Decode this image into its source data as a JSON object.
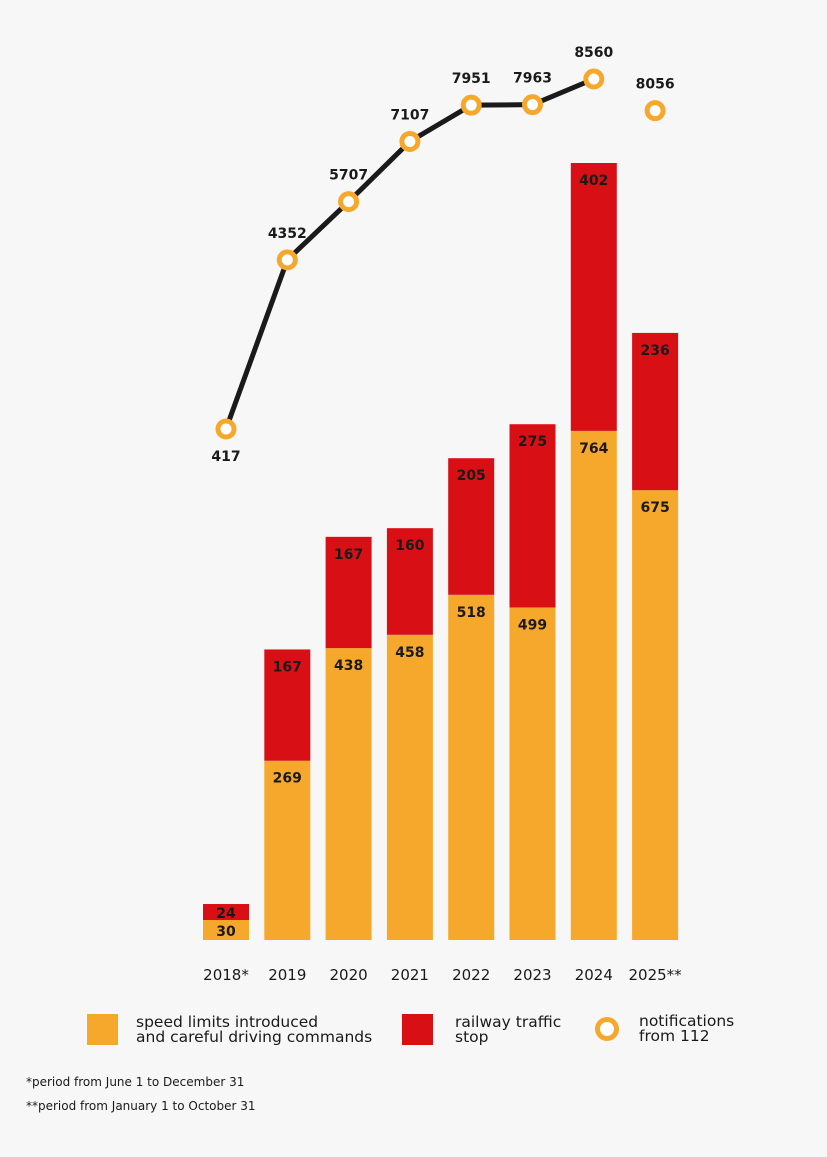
{
  "chart_data": {
    "type": "bar",
    "stacked": true,
    "categories": [
      "2018*",
      "2019",
      "2020",
      "2021",
      "2022",
      "2023",
      "2024",
      "2025**"
    ],
    "series": [
      {
        "name": "speed limits introduced and careful driving commands",
        "kind": "bar",
        "color": "#f5a82c",
        "values": [
          30,
          269,
          438,
          458,
          518,
          499,
          764,
          675
        ]
      },
      {
        "name": "railway traffic stop",
        "kind": "bar",
        "color": "#d81016",
        "values": [
          24,
          167,
          167,
          160,
          205,
          275,
          402,
          236
        ]
      },
      {
        "name": "notifications from 112",
        "kind": "line",
        "color": "#f5a82c",
        "line_color": "#1a1a1a",
        "values": [
          417,
          4352,
          5707,
          7107,
          7951,
          7963,
          8560,
          8056
        ],
        "line_connected_through_index": 6
      }
    ],
    "grid": false,
    "legend_position": "bottom"
  },
  "legend": [
    {
      "line1": "speed limits introduced",
      "line2": "and careful driving commands"
    },
    {
      "line1": "railway traffic",
      "line2": "stop"
    },
    {
      "line1": "notifications",
      "line2": "from 112"
    }
  ],
  "footnotes": [
    "*period from June 1 to December 31",
    "**period from January 1 to October 31"
  ]
}
